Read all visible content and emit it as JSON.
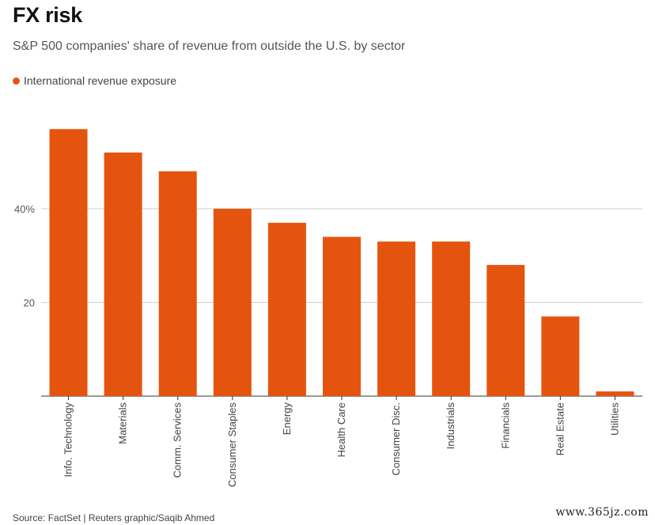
{
  "title": "FX risk",
  "subtitle": "S&P 500 companies' share of revenue from outside the U.S. by sector",
  "source": "Source: FactSet | Reuters graphic/Saqib Ahmed",
  "watermark": "www.365jz.com",
  "accent_color": "#e5540f",
  "chart_data": {
    "type": "bar",
    "title": "FX risk",
    "subtitle": "S&P 500 companies' share of revenue from outside the U.S. by sector",
    "xlabel": "",
    "ylabel": "",
    "ylim": [
      0,
      60
    ],
    "yticks": [
      {
        "value": 20,
        "label": "20"
      },
      {
        "value": 40,
        "label": "40%"
      }
    ],
    "grid": true,
    "legend_position": "top-left",
    "categories": [
      "Info. Technology",
      "Materials",
      "Comm. Services",
      "Consumer Staples",
      "Energy",
      "Health Care",
      "Consumer Disc.",
      "Industrials",
      "Financials",
      "Real Estate",
      "Utilities"
    ],
    "series": [
      {
        "name": "International revenue exposure",
        "color": "#e5540f",
        "values": [
          57,
          52,
          48,
          40,
          37,
          34,
          33,
          33,
          28,
          17,
          1
        ]
      }
    ]
  }
}
